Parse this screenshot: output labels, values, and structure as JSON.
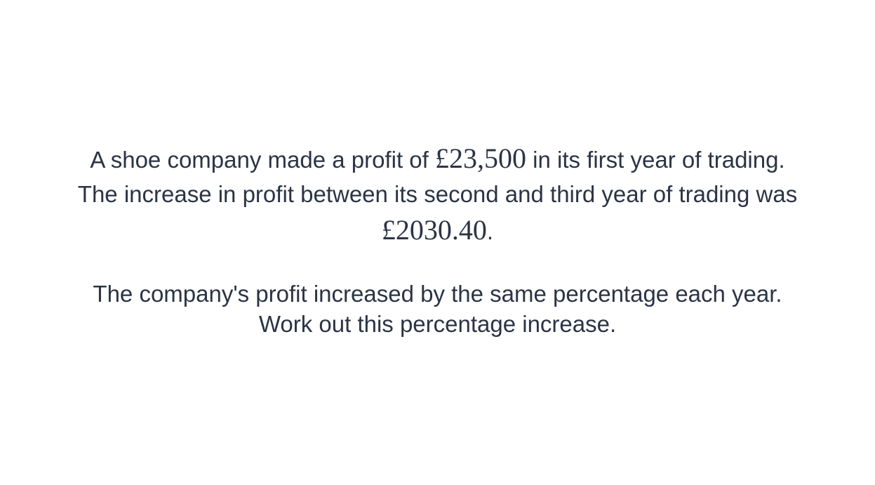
{
  "question": {
    "line1_before": "A shoe company made a profit of ",
    "line1_amount": "£23,500",
    "line1_after": " in its first year of trading.",
    "line2": "The increase in profit between its second and third year of trading was",
    "line3_amount": "£2030.40",
    "line3_after": ".",
    "line4": "The company's profit increased by the same percentage each year.",
    "line5": "Work out this percentage increase."
  }
}
